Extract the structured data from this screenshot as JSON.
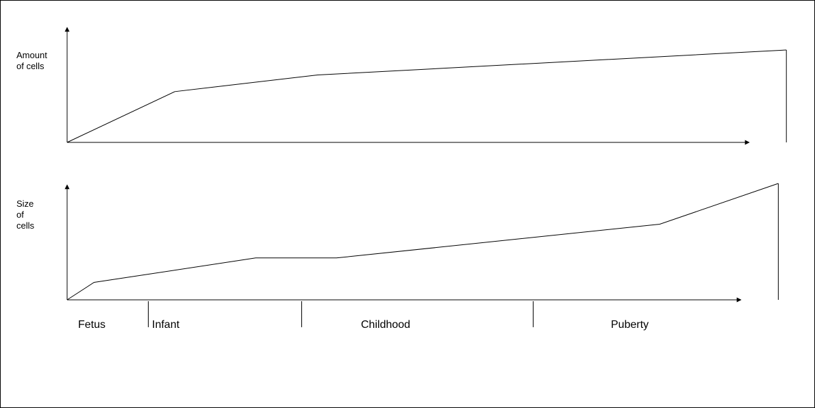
{
  "chart_data": [
    {
      "type": "line",
      "ylabel": [
        "Amount",
        "of cells"
      ],
      "series": [
        {
          "x": [
            0,
            4.0,
            9.3,
            26.7
          ],
          "values": [
            0,
            55,
            73,
            100
          ]
        }
      ],
      "xlim": [
        0,
        27
      ],
      "ylim": [
        0,
        100
      ]
    },
    {
      "type": "line",
      "ylabel": [
        "Size",
        "of",
        "cells"
      ],
      "series": [
        {
          "x": [
            0,
            1.0,
            7.0,
            10.0,
            22.0,
            26.4
          ],
          "values": [
            0,
            15,
            36,
            36,
            65,
            100
          ]
        }
      ],
      "xlim": [
        0,
        27
      ],
      "ylim": [
        0,
        100
      ]
    }
  ],
  "phases": {
    "labels": [
      "Fetus",
      "Infant",
      "Childhood",
      "Puberty"
    ],
    "boundaries": [
      3.0,
      8.7,
      17.3
    ]
  },
  "colors": {
    "line": "#000000",
    "background": "#ffffff"
  }
}
